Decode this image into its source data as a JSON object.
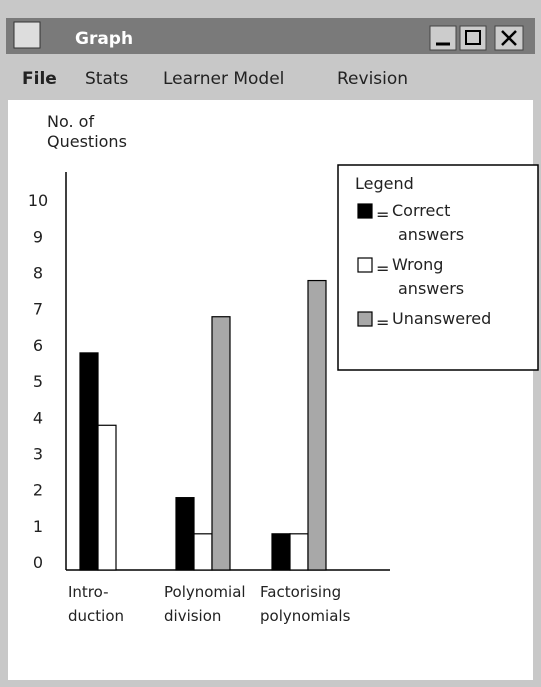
{
  "window": {
    "title": "Graph",
    "menu": [
      "File",
      "Stats",
      "Learner Model",
      "Revision"
    ]
  },
  "chart_data": {
    "type": "bar",
    "y_axis_label": "No. of\nQuestions",
    "categories": [
      "Intro-\nduction",
      "Polynomial\ndivision",
      "Factorising\npolynomials"
    ],
    "series": [
      {
        "name": "Correct\nanswers",
        "color": "#000000",
        "values": [
          6,
          2,
          1
        ]
      },
      {
        "name": "Wrong\nanswers",
        "color": "#ffffff",
        "values": [
          4,
          1,
          1
        ]
      },
      {
        "name": "Unanswered",
        "color": "#a8a8a8",
        "values": [
          0,
          7,
          8
        ]
      }
    ],
    "legend_title": "Legend",
    "legend_equals": "=",
    "ylim": [
      0,
      11
    ],
    "yticks": [
      0,
      1,
      2,
      3,
      4,
      5,
      6,
      7,
      8,
      9,
      10
    ],
    "legend": "upper right"
  }
}
